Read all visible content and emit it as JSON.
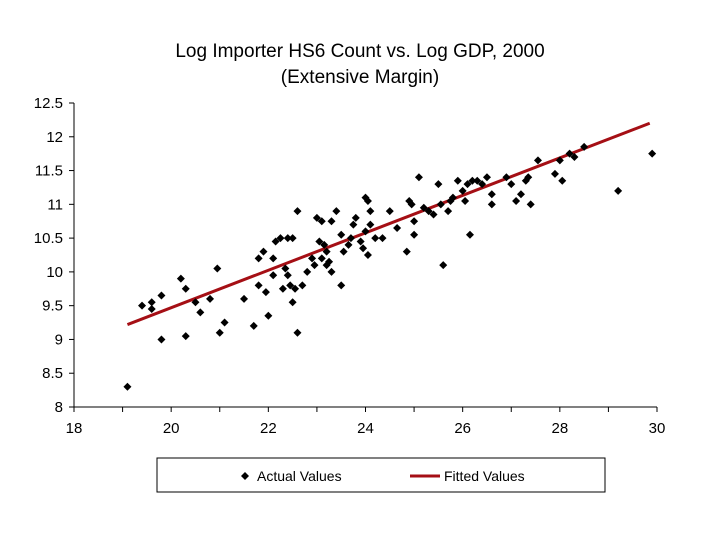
{
  "chart_data": {
    "type": "scatter",
    "title": "Log Importer HS6 Count vs. Log GDP, 2000",
    "subtitle": "(Extensive Margin)",
    "xlabel": "",
    "ylabel": "",
    "xlim": [
      18,
      30
    ],
    "ylim": [
      8,
      12.5
    ],
    "xticks": [
      "18",
      "20",
      "22",
      "24",
      "26",
      "28",
      "30"
    ],
    "yticks": [
      "12.5",
      "12",
      "11.5",
      "11",
      "10.5",
      "10",
      "9.5",
      "9",
      "8.5",
      "8"
    ],
    "grid": false,
    "legend_position": "bottom",
    "colors": {
      "points": "#000000",
      "fitted_line": "#a50f15"
    },
    "series": [
      {
        "name": "Actual Values",
        "kind": "scatter",
        "marker": "diamond",
        "points": [
          [
            19.1,
            8.3
          ],
          [
            19.4,
            9.5
          ],
          [
            19.6,
            9.45
          ],
          [
            19.6,
            9.55
          ],
          [
            19.8,
            9.65
          ],
          [
            19.8,
            9.0
          ],
          [
            20.2,
            9.9
          ],
          [
            20.3,
            9.75
          ],
          [
            20.3,
            9.05
          ],
          [
            20.5,
            9.55
          ],
          [
            20.6,
            9.4
          ],
          [
            20.8,
            9.6
          ],
          [
            20.95,
            10.05
          ],
          [
            21.0,
            9.1
          ],
          [
            21.1,
            9.25
          ],
          [
            21.5,
            9.6
          ],
          [
            21.7,
            9.2
          ],
          [
            21.8,
            9.8
          ],
          [
            21.8,
            10.2
          ],
          [
            21.9,
            10.3
          ],
          [
            21.95,
            9.7
          ],
          [
            22.0,
            9.35
          ],
          [
            22.1,
            9.95
          ],
          [
            22.1,
            10.2
          ],
          [
            22.15,
            10.45
          ],
          [
            22.25,
            10.5
          ],
          [
            22.4,
            10.5
          ],
          [
            22.5,
            10.5
          ],
          [
            22.35,
            10.05
          ],
          [
            22.3,
            9.75
          ],
          [
            22.4,
            9.95
          ],
          [
            22.45,
            9.8
          ],
          [
            22.5,
            9.55
          ],
          [
            22.55,
            9.75
          ],
          [
            22.6,
            9.1
          ],
          [
            22.6,
            10.9
          ],
          [
            22.7,
            9.8
          ],
          [
            22.8,
            10.0
          ],
          [
            22.9,
            10.2
          ],
          [
            22.95,
            10.1
          ],
          [
            23.0,
            10.8
          ],
          [
            23.1,
            10.75
          ],
          [
            23.05,
            10.45
          ],
          [
            23.15,
            10.4
          ],
          [
            23.2,
            10.3
          ],
          [
            23.1,
            10.2
          ],
          [
            23.2,
            10.1
          ],
          [
            23.3,
            10.0
          ],
          [
            23.25,
            10.15
          ],
          [
            23.3,
            10.75
          ],
          [
            23.4,
            10.9
          ],
          [
            23.5,
            10.55
          ],
          [
            23.55,
            10.3
          ],
          [
            23.5,
            9.8
          ],
          [
            23.65,
            10.4
          ],
          [
            23.7,
            10.5
          ],
          [
            23.75,
            10.7
          ],
          [
            23.8,
            10.8
          ],
          [
            23.9,
            10.45
          ],
          [
            23.95,
            10.35
          ],
          [
            24.0,
            10.6
          ],
          [
            24.05,
            10.25
          ],
          [
            24.1,
            10.7
          ],
          [
            24.0,
            11.1
          ],
          [
            24.05,
            11.05
          ],
          [
            24.1,
            10.9
          ],
          [
            24.2,
            10.5
          ],
          [
            24.35,
            10.5
          ],
          [
            24.5,
            10.9
          ],
          [
            24.65,
            10.65
          ],
          [
            24.85,
            10.3
          ],
          [
            24.9,
            11.05
          ],
          [
            24.95,
            11.0
          ],
          [
            25.0,
            10.75
          ],
          [
            25.0,
            10.55
          ],
          [
            25.1,
            11.4
          ],
          [
            25.2,
            10.95
          ],
          [
            25.3,
            10.9
          ],
          [
            25.4,
            10.85
          ],
          [
            25.5,
            11.3
          ],
          [
            25.55,
            11.0
          ],
          [
            25.6,
            10.1
          ],
          [
            25.7,
            10.9
          ],
          [
            25.75,
            11.05
          ],
          [
            25.8,
            11.1
          ],
          [
            25.9,
            11.35
          ],
          [
            26.0,
            11.2
          ],
          [
            26.05,
            11.05
          ],
          [
            26.1,
            11.3
          ],
          [
            26.15,
            10.55
          ],
          [
            26.2,
            11.35
          ],
          [
            26.3,
            11.35
          ],
          [
            26.4,
            11.3
          ],
          [
            26.5,
            11.4
          ],
          [
            26.6,
            11.0
          ],
          [
            26.6,
            11.15
          ],
          [
            26.9,
            11.4
          ],
          [
            27.0,
            11.3
          ],
          [
            27.1,
            11.05
          ],
          [
            27.2,
            11.15
          ],
          [
            27.3,
            11.35
          ],
          [
            27.35,
            11.4
          ],
          [
            27.4,
            11.0
          ],
          [
            27.55,
            11.65
          ],
          [
            27.9,
            11.45
          ],
          [
            28.0,
            11.65
          ],
          [
            28.05,
            11.35
          ],
          [
            28.2,
            11.75
          ],
          [
            28.3,
            11.7
          ],
          [
            28.5,
            11.85
          ],
          [
            29.2,
            11.2
          ],
          [
            29.9,
            11.75
          ]
        ]
      },
      {
        "name": "Fitted Values",
        "kind": "line",
        "points": [
          [
            19.1,
            9.22
          ],
          [
            29.85,
            12.2
          ]
        ]
      }
    ]
  }
}
